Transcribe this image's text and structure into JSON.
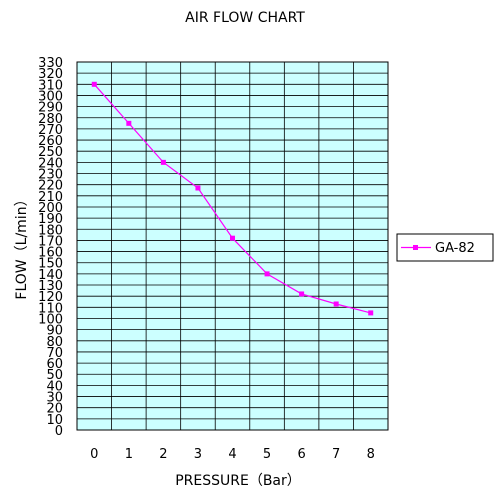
{
  "chart_data": {
    "type": "line",
    "title": "AIR FLOW CHART",
    "xlabel": "PRESSURE（Bar）",
    "ylabel": "FLOW（L/min）",
    "x": [
      0,
      1,
      2,
      3,
      4,
      5,
      6,
      7,
      8
    ],
    "xlim": [
      0,
      8
    ],
    "ylim": [
      0,
      330
    ],
    "y_tick_step": 10,
    "grid": true,
    "legend_position": "right",
    "series": [
      {
        "name": "GA-82",
        "values": [
          310,
          275,
          240,
          217,
          172,
          140,
          122,
          113,
          105
        ],
        "color": "#ff00ff"
      }
    ],
    "plot_background": "#ccffff"
  }
}
